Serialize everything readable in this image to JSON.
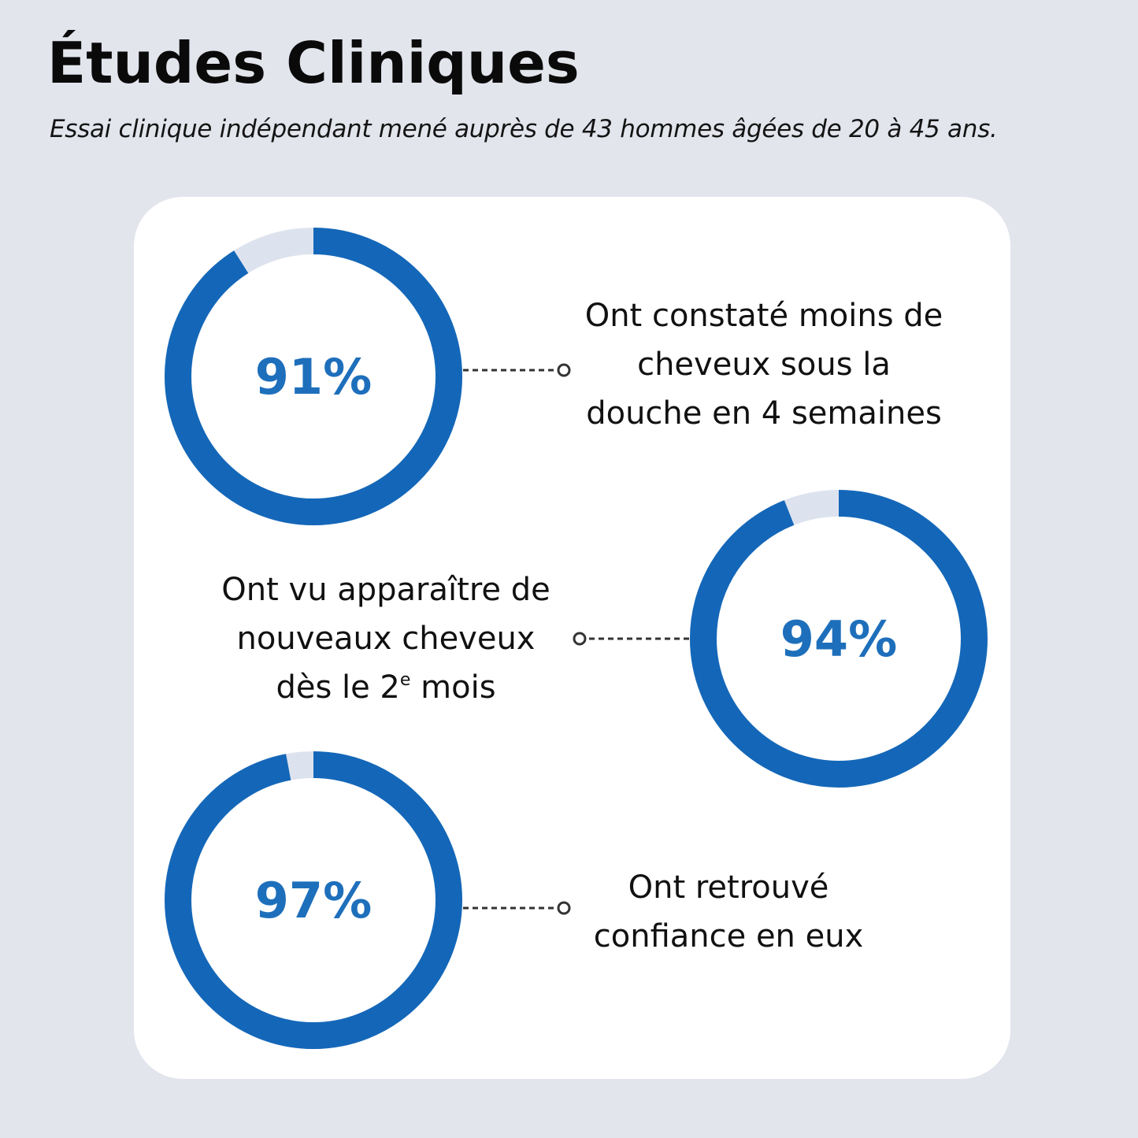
{
  "header": {
    "title": "Études Cliniques",
    "subtitle": "Essai clinique indépendant mené auprès de 43 hommes âgées de 20 à 45 ans."
  },
  "colors": {
    "background": "#e3e5ed",
    "card": "#ffffff",
    "ring_fill": "#1467b8",
    "ring_track": "#dde3ee",
    "percent_text": "#1e6fbb",
    "connector": "#333333"
  },
  "chart_data": [
    {
      "type": "donut",
      "value": 91,
      "max": 100,
      "label": "91%",
      "description_lines": [
        "Ont constaté moins de",
        "cheveux sous la",
        "douche en 4 semaines"
      ],
      "description_superscript": ""
    },
    {
      "type": "donut",
      "value": 94,
      "max": 100,
      "label": "94%",
      "description_lines": [
        "Ont vu apparaître de",
        "nouveaux cheveux",
        "dès le 2"
      ],
      "description_superscript": "e",
      "description_tail": " mois"
    },
    {
      "type": "donut",
      "value": 97,
      "max": 100,
      "label": "97%",
      "description_lines": [
        "Ont retrouvé",
        "confiance en eux"
      ],
      "description_superscript": ""
    }
  ]
}
